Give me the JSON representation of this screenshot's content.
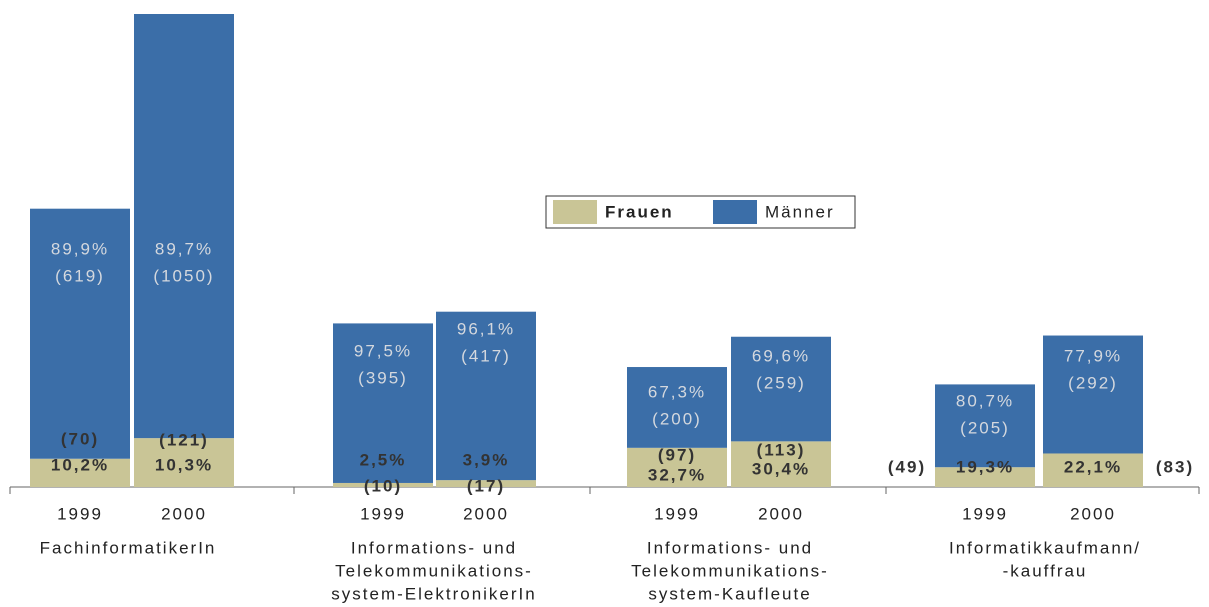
{
  "chart_data": {
    "type": "stacked-bar",
    "categories": [
      "1999",
      "2000",
      "1999",
      "2000",
      "1999",
      "2000",
      "1999",
      "2000"
    ],
    "groups": [
      [
        "FachinformatikerIn"
      ],
      [
        "Informations- und",
        "Telekommunikations-",
        "system-ElektronikerIn"
      ],
      [
        "Informations- und",
        "Telekommunikations-",
        "system-Kaufleute"
      ],
      [
        "Informatikkaufmann/",
        "-kauffrau"
      ]
    ],
    "series": [
      {
        "name": "Frauen",
        "color": "#c9c596",
        "values": [
          70,
          121,
          10,
          17,
          97,
          113,
          49,
          83
        ],
        "value_labels": [
          "(70)",
          "(121)",
          "(10)",
          "(17)",
          "(97)",
          "(113)",
          "(49)",
          "(83)"
        ],
        "percent_labels": [
          "10,2%",
          "10,3%",
          "2,5%",
          "3,9%",
          "32,7%",
          "30,4%",
          "19,3%",
          "22,1%"
        ]
      },
      {
        "name": "Männer",
        "color": "#3b6ea8",
        "values": [
          619,
          1050,
          395,
          417,
          200,
          259,
          205,
          292
        ],
        "value_labels": [
          "(619)",
          "(1050)",
          "(395)",
          "(417)",
          "(200)",
          "(259)",
          "(205)",
          "(292)"
        ],
        "percent_labels": [
          "89,9%",
          "89,7%",
          "97,5%",
          "96,1%",
          "67,3%",
          "69,6%",
          "80,7%",
          "77,9%"
        ]
      }
    ]
  }
}
